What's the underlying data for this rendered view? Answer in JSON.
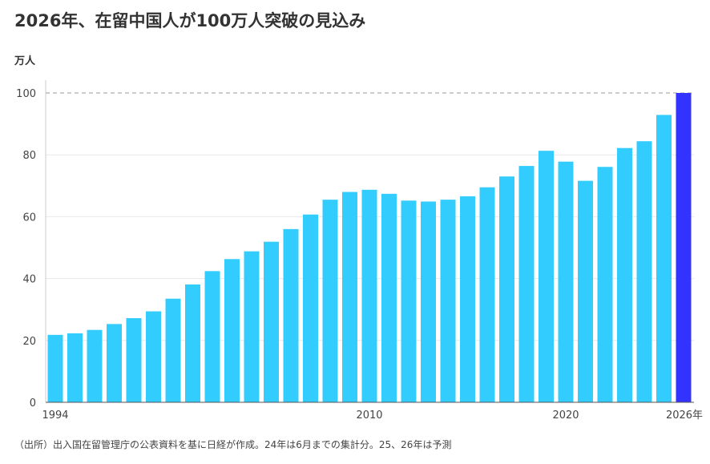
{
  "title": "2026年、在留中国人が100万人突破の見込み",
  "unit_label": "万人",
  "source_note": "（出所）出入国在留管理庁の公表資料を基に日経が作成。24年は6月までの集計分。25、26年は予測",
  "colors": {
    "bar": "#33ccff",
    "highlight": "#3333ff",
    "reference_line": "#999999",
    "grid": "#e8e8e8"
  },
  "chart_data": {
    "type": "bar",
    "categories": [
      "1994",
      "1995",
      "1996",
      "1997",
      "1998",
      "1999",
      "2000",
      "2001",
      "2002",
      "2003",
      "2004",
      "2005",
      "2006",
      "2007",
      "2008",
      "2009",
      "2010",
      "2011",
      "2012",
      "2013",
      "2014",
      "2015",
      "2016",
      "2017",
      "2018",
      "2019",
      "2020",
      "2021",
      "2022",
      "2023",
      "2024",
      "2025",
      "2026"
    ],
    "values": [
      21.8,
      22.3,
      23.4,
      25.3,
      27.2,
      29.4,
      33.5,
      38.1,
      42.4,
      46.3,
      48.8,
      51.9,
      56.0,
      60.7,
      65.5,
      68.0,
      68.7,
      67.4,
      65.2,
      64.9,
      65.5,
      66.6,
      69.5,
      73.0,
      76.4,
      81.3,
      77.8,
      71.6,
      76.1,
      82.2,
      84.4,
      92.9,
      100.0
    ],
    "highlight_index": 32,
    "x_tick_labels": [
      {
        "index": 0,
        "label": "1994"
      },
      {
        "index": 16,
        "label": "2010"
      },
      {
        "index": 26,
        "label": "2020"
      },
      {
        "index": 32,
        "label": "2026年"
      }
    ],
    "yticks": [
      0,
      20,
      40,
      60,
      80,
      100
    ],
    "ylim": [
      0,
      100
    ],
    "reference_line": 100,
    "grid": true
  }
}
